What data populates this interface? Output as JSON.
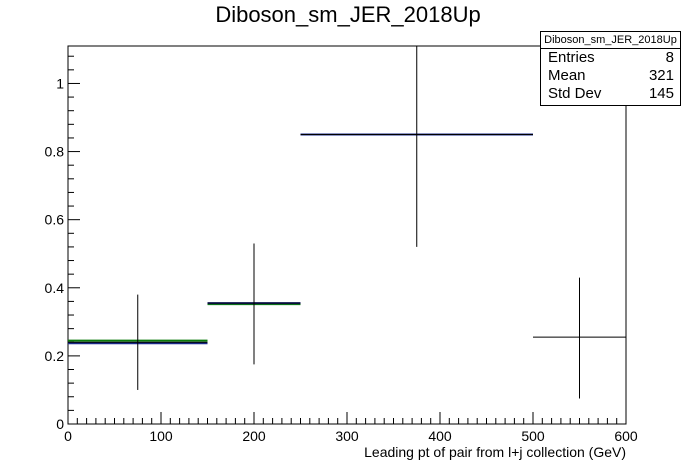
{
  "chart_data": {
    "type": "histogram",
    "title": "Diboson_sm_JER_2018Up",
    "xlabel": "Leading pt of pair from l+j collection (GeV)",
    "ylabel": "",
    "xlim": [
      0,
      600
    ],
    "ylim": [
      0,
      1.11
    ],
    "x_ticks": [
      0,
      100,
      200,
      300,
      400,
      500,
      600
    ],
    "y_ticks": [
      0,
      0.2,
      0.4,
      0.6,
      0.8,
      1
    ],
    "bins": [
      {
        "x_low": 0,
        "x_high": 150,
        "x_center": 75,
        "value": 0.24,
        "err_low": 0.1,
        "err_high": 0.38
      },
      {
        "x_low": 150,
        "x_high": 250,
        "x_center": 200,
        "value": 0.355,
        "err_low": 0.175,
        "err_high": 0.53
      },
      {
        "x_low": 250,
        "x_high": 500,
        "x_center": 375,
        "value": 0.85,
        "err_low": 0.52,
        "err_high": 1.11
      },
      {
        "x_low": 500,
        "x_high": 600,
        "x_center": 550,
        "value": 0.255,
        "err_low": 0.075,
        "err_high": 0.43
      }
    ],
    "overlay_segments": [
      {
        "color": "#0a7a0a",
        "x_low": 0,
        "x_high": 150,
        "value": 0.245
      },
      {
        "color": "#0a7a0a",
        "x_low": 150,
        "x_high": 250,
        "value": 0.352
      },
      {
        "color": "#1a2a8a",
        "x_low": 0,
        "x_high": 150,
        "value": 0.237
      },
      {
        "color": "#1a2a8a",
        "x_low": 150,
        "x_high": 250,
        "value": 0.355
      },
      {
        "color": "#1a2a8a",
        "x_low": 250,
        "x_high": 500,
        "value": 0.85
      }
    ],
    "stats": {
      "title": "Diboson_sm_JER_2018Up",
      "rows": [
        {
          "label": "Entries",
          "value": "8"
        },
        {
          "label": "Mean",
          "value": "321"
        },
        {
          "label": "Std Dev",
          "value": "145"
        }
      ]
    }
  }
}
